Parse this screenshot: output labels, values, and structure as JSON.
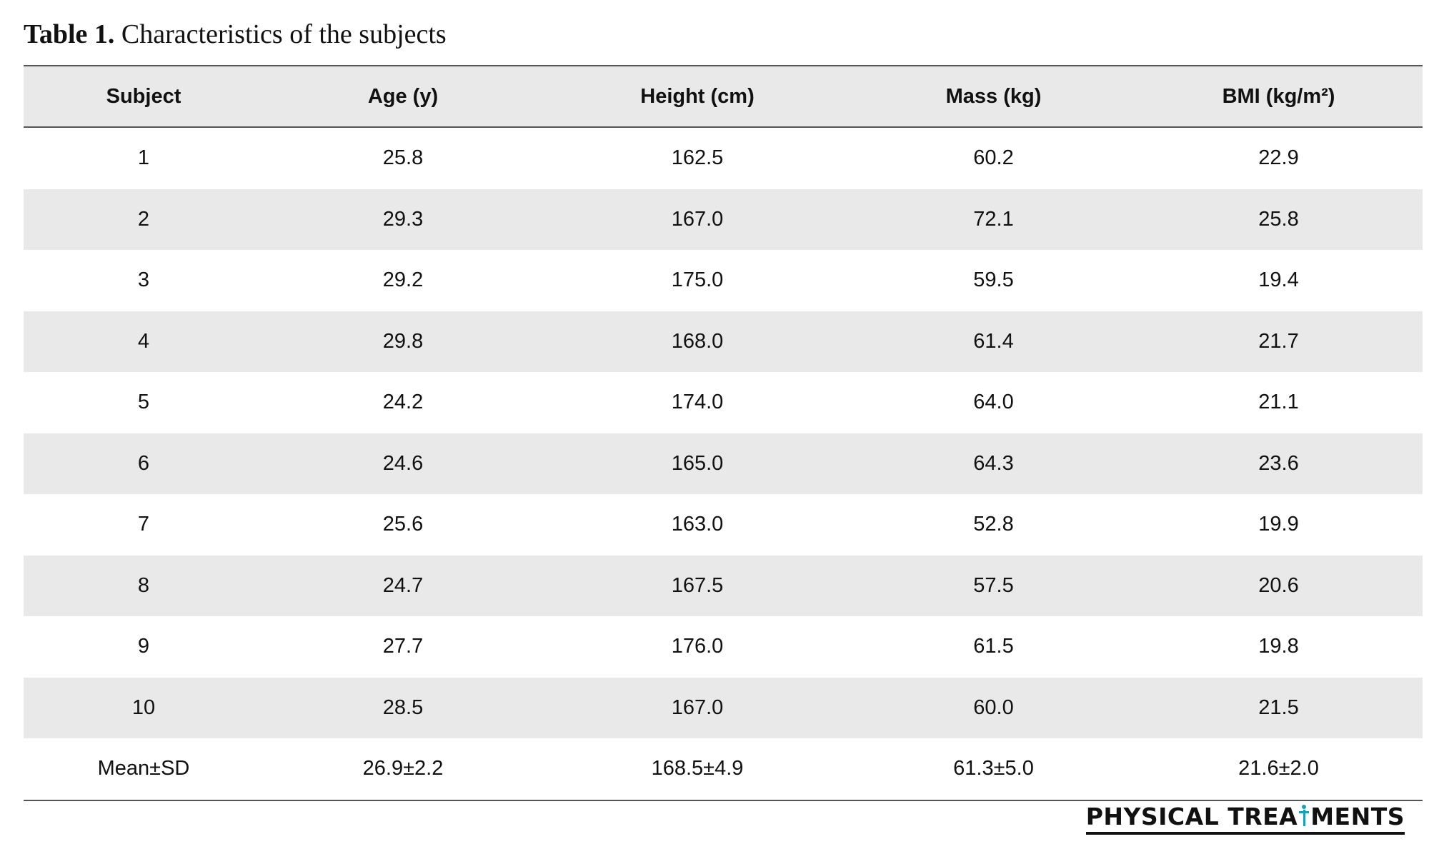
{
  "caption": {
    "label": "Table 1.",
    "text": "Characteristics of the subjects"
  },
  "table": {
    "headers": [
      "Subject",
      "Age (y)",
      "Height (cm)",
      "Mass (kg)",
      "BMI (kg/m²)"
    ],
    "rows": [
      [
        "1",
        "25.8",
        "162.5",
        "60.2",
        "22.9"
      ],
      [
        "2",
        "29.3",
        "167.0",
        "72.1",
        "25.8"
      ],
      [
        "3",
        "29.2",
        "175.0",
        "59.5",
        "19.4"
      ],
      [
        "4",
        "29.8",
        "168.0",
        "61.4",
        "21.7"
      ],
      [
        "5",
        "24.2",
        "174.0",
        "64.0",
        "21.1"
      ],
      [
        "6",
        "24.6",
        "165.0",
        "64.3",
        "23.6"
      ],
      [
        "7",
        "25.6",
        "163.0",
        "52.8",
        "19.9"
      ],
      [
        "8",
        "24.7",
        "167.5",
        "57.5",
        "20.6"
      ],
      [
        "9",
        "27.7",
        "176.0",
        "61.5",
        "19.8"
      ],
      [
        "10",
        "28.5",
        "167.0",
        "60.0",
        "21.5"
      ],
      [
        "Mean±SD",
        "26.9±2.2",
        "168.5±4.9",
        "61.3±5.0",
        "21.6±2.0"
      ]
    ]
  },
  "logo": {
    "text_left": "PHYSICAL TREA",
    "text_right": "MENTS",
    "icon": "human-figure-icon",
    "accent_color": "#1a9fb8"
  },
  "colors": {
    "row_shade": "#e9e9e9",
    "rule": "#555555"
  }
}
